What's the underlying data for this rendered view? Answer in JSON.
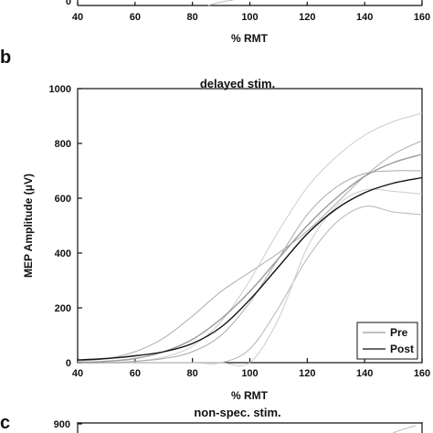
{
  "panels": {
    "b": "b",
    "c": "c"
  },
  "top_strip": {
    "x_ticks": [
      "40",
      "60",
      "80",
      "100",
      "120",
      "140",
      "160"
    ],
    "y_tick": "0",
    "xlabel": "% RMT"
  },
  "bottom_strip": {
    "title": "non-spec. stim.",
    "y_tick": "900"
  },
  "chart_data": {
    "type": "line",
    "title": "delayed stim.",
    "xlabel": "% RMT",
    "ylabel": "MEP Amplitude (μV)",
    "xlim": [
      40,
      160
    ],
    "ylim": [
      0,
      1000
    ],
    "x_ticks": [
      40,
      60,
      80,
      100,
      120,
      140,
      160
    ],
    "y_ticks": [
      0,
      200,
      400,
      600,
      800,
      1000
    ],
    "legend_position": "bottom-right",
    "grid": false,
    "x": [
      40,
      50,
      60,
      70,
      80,
      90,
      100,
      110,
      120,
      130,
      140,
      150,
      160
    ],
    "series": [
      {
        "name": "Pre",
        "color": "#9a9a9a",
        "values": [
          0,
          5,
          15,
          40,
          85,
          160,
          260,
          380,
          500,
          600,
          680,
          730,
          760
        ]
      },
      {
        "name": "Post",
        "color": "#111111",
        "values": [
          10,
          15,
          25,
          40,
          70,
          130,
          230,
          350,
          470,
          560,
          620,
          655,
          675
        ]
      }
    ],
    "background_curves": [
      {
        "color": "#aaaaaa",
        "values": [
          5,
          15,
          40,
          90,
          170,
          260,
          330,
          400,
          480,
          580,
          680,
          760,
          810
        ]
      },
      {
        "color": "#cccccc",
        "values": [
          0,
          0,
          5,
          20,
          60,
          150,
          300,
          480,
          640,
          750,
          830,
          880,
          910
        ]
      },
      {
        "color": "#b5b5b5",
        "values": [
          0,
          0,
          0,
          0,
          0,
          0,
          50,
          200,
          380,
          510,
          570,
          550,
          540
        ]
      },
      {
        "color": "#cccccc",
        "values": [
          0,
          0,
          0,
          0,
          0,
          0,
          0,
          160,
          420,
          570,
          630,
          625,
          615
        ]
      },
      {
        "color": "#a8a8a8",
        "values": [
          0,
          0,
          5,
          15,
          40,
          100,
          220,
          380,
          540,
          640,
          690,
          700,
          700
        ]
      }
    ]
  }
}
